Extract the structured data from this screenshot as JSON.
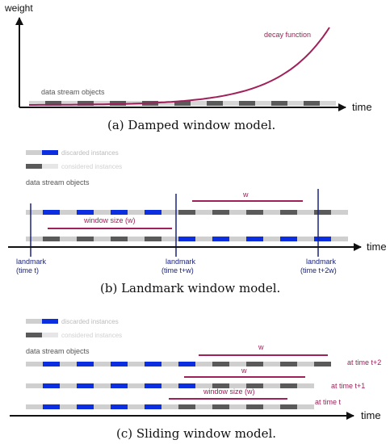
{
  "colors": {
    "blue": "#0a2ee0",
    "dark": "#5a5a5a",
    "light": "#cfcfcf",
    "maroon": "#a0205a",
    "navy": "#1a237e",
    "faint": "#bbbbbb",
    "axis": "#111111"
  },
  "panel_a": {
    "y_axis_label": "weight",
    "x_axis_label": "time",
    "curve_label": "decay function",
    "stream_label": "data stream objects",
    "caption": "(a)  Damped window model."
  },
  "panel_b": {
    "legend": {
      "discarded": "discarded instances",
      "considered": "considered instances"
    },
    "stream_label": "data stream objects",
    "window_size_label": "window size (w)",
    "w_label": "w",
    "x_axis_label": "time",
    "landmarks": [
      {
        "line1": "landmark",
        "line2": "(time t)"
      },
      {
        "line1": "landmark",
        "line2": "(time t+w)"
      },
      {
        "line1": "landmark",
        "line2": "(time t+2w)"
      }
    ],
    "caption": "(b)  Landmark window model."
  },
  "panel_c": {
    "legend": {
      "discarded": "discarded instances",
      "considered": "considered instances"
    },
    "stream_label": "data stream objects",
    "row_labels": [
      "at time t+2",
      "at time t+1",
      "at time t"
    ],
    "w_label_top": "w",
    "w_label_mid": "w",
    "window_size_label": "window size (w)",
    "x_axis_label": "time",
    "caption": "(c)  Sliding window model."
  }
}
